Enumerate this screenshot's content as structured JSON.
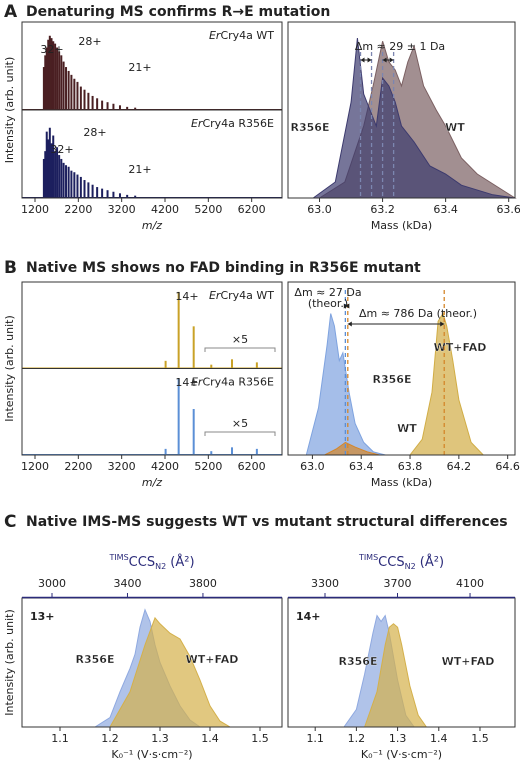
{
  "panels": [
    {
      "letter": "A",
      "title": "Denaturing MS confirms R→E mutation"
    },
    {
      "letter": "B",
      "title": "Native MS shows no FAD binding in R356E mutant"
    },
    {
      "letter": "C",
      "title": "Native IMS-MS suggests WT vs mutant structural differences"
    }
  ],
  "chart_data": [
    {
      "type": "spectrum",
      "xlabel": "m/z",
      "ylabel": "Intensity (arb. unit)",
      "xlim": [
        900,
        6900
      ],
      "xticks": [
        1200,
        2200,
        3200,
        4200,
        5200,
        6200
      ],
      "ylim": [
        0,
        1.05
      ],
      "series": [
        {
          "name": "ErCry4a WT",
          "color": "#4a1f22",
          "charge_labels": [
            "32+",
            "28+",
            "21+"
          ],
          "x": [
            1405,
            1437,
            1471,
            1506,
            1542,
            1581,
            1621,
            1664,
            1709,
            1757,
            1807,
            1860,
            1916,
            1976,
            2040,
            2108,
            2180,
            2258,
            2342,
            2432,
            2529,
            2634,
            2749,
            2874,
            3010,
            3161,
            3327,
            3512
          ],
          "values": [
            0.55,
            0.7,
            0.8,
            0.9,
            0.95,
            0.92,
            0.88,
            0.85,
            0.8,
            0.75,
            0.7,
            0.62,
            0.55,
            0.5,
            0.45,
            0.4,
            0.36,
            0.3,
            0.26,
            0.22,
            0.18,
            0.15,
            0.12,
            0.1,
            0.08,
            0.06,
            0.04,
            0.03
          ]
        },
        {
          "name": "ErCry4a R356E",
          "color": "#1c1f5e",
          "charge_labels": [
            "32+",
            "28+",
            "21+"
          ],
          "x": [
            1405,
            1437,
            1471,
            1506,
            1542,
            1581,
            1621,
            1664,
            1709,
            1757,
            1807,
            1860,
            1916,
            1976,
            2040,
            2108,
            2180,
            2258,
            2342,
            2432,
            2529,
            2634,
            2749,
            2874,
            3010,
            3161,
            3327,
            3512
          ],
          "values": [
            0.5,
            0.6,
            0.85,
            0.75,
            0.9,
            0.7,
            0.8,
            0.6,
            0.65,
            0.55,
            0.5,
            0.45,
            0.42,
            0.4,
            0.35,
            0.33,
            0.3,
            0.27,
            0.23,
            0.2,
            0.17,
            0.14,
            0.12,
            0.1,
            0.08,
            0.06,
            0.04,
            0.03
          ]
        }
      ]
    },
    {
      "type": "area",
      "xlabel": "Mass (kDa)",
      "xlim": [
        62.9,
        63.62
      ],
      "xticks": [
        {
          "value": 63,
          "label": "63.0"
        },
        63.2,
        63.4,
        63.6
      ],
      "ylim": [
        0,
        1.1
      ],
      "annotations": [
        "Δm ≈ 29 ± 1 Da"
      ],
      "vlines": [
        {
          "value": 63.13,
          "color": "#7c86b0"
        },
        {
          "value": 63.165,
          "color": "#7c86b0"
        },
        {
          "value": 63.2,
          "color": "#7c86b0"
        },
        {
          "value": 63.235,
          "color": "#7c86b0"
        }
      ],
      "series": [
        {
          "name": "WT",
          "color": "#7b6062",
          "x": [
            63.0,
            63.08,
            63.14,
            63.17,
            63.2,
            63.22,
            63.24,
            63.26,
            63.28,
            63.3,
            63.33,
            63.37,
            63.4,
            63.45,
            63.5,
            63.58,
            63.62
          ],
          "values": [
            0,
            0.1,
            0.45,
            0.7,
            0.98,
            0.85,
            0.8,
            0.7,
            0.85,
            0.95,
            0.7,
            0.55,
            0.45,
            0.25,
            0.15,
            0.05,
            0
          ]
        },
        {
          "name": "R356E",
          "color": "#3c3a6e",
          "x": [
            62.98,
            63.05,
            63.1,
            63.12,
            63.14,
            63.16,
            63.18,
            63.2,
            63.22,
            63.24,
            63.26,
            63.3,
            63.35,
            63.4,
            63.45,
            63.55,
            63.62
          ],
          "values": [
            0,
            0.1,
            0.6,
            1.0,
            0.65,
            0.55,
            0.45,
            0.75,
            0.7,
            0.6,
            0.45,
            0.35,
            0.2,
            0.15,
            0.08,
            0.02,
            0
          ]
        }
      ]
    },
    {
      "type": "spectrum",
      "xlabel": "m/z",
      "ylabel": "Intensity (arb. unit)",
      "xlim": [
        900,
        6900
      ],
      "xticks": [
        1200,
        2200,
        3200,
        4200,
        5200,
        6200
      ],
      "ylim": [
        0,
        1.05
      ],
      "series": [
        {
          "name": "ErCry4a WT",
          "color": "#c9a227",
          "charge_labels": [
            "14+"
          ],
          "scale_label": "×5",
          "x": [
            4214,
            4515,
            4862,
            5268,
            5746,
            6320
          ],
          "values": [
            0.1,
            1.0,
            0.55,
            0.05,
            0.12,
            0.08
          ]
        },
        {
          "name": "ErCry4a R356E",
          "color": "#5b8fd6",
          "charge_labels": [
            "14+"
          ],
          "scale_label": "×5",
          "x": [
            4214,
            4515,
            4862,
            5268,
            5746,
            6320
          ],
          "values": [
            0.08,
            1.0,
            0.6,
            0.05,
            0.1,
            0.08
          ]
        }
      ]
    },
    {
      "type": "area",
      "xlabel": "Mass (kDa)",
      "xlim": [
        62.8,
        64.66
      ],
      "xticks": [
        {
          "value": 63,
          "label": "63.0"
        },
        63.4,
        63.8,
        64.2,
        64.6
      ],
      "ylim": [
        0,
        1.1
      ],
      "annotations": [
        "Δm ≈ 27 Da",
        "(theor.)",
        "Δm ≈ 786 Da (theor.)"
      ],
      "vlines": [
        {
          "value": 63.27,
          "color": "#5b8fd6"
        },
        {
          "value": 63.29,
          "color": "#d4862a"
        },
        {
          "value": 64.08,
          "color": "#d4862a"
        }
      ],
      "series": [
        {
          "name": "R356E",
          "color": "#7fa3df",
          "x": [
            62.95,
            63.05,
            63.12,
            63.15,
            63.18,
            63.22,
            63.25,
            63.3,
            63.35,
            63.42,
            63.5,
            63.6
          ],
          "values": [
            0,
            0.3,
            0.7,
            0.9,
            0.82,
            0.6,
            0.65,
            0.4,
            0.2,
            0.08,
            0.02,
            0
          ]
        },
        {
          "name": "WT",
          "color": "#d4862a",
          "x": [
            63.1,
            63.2,
            63.27,
            63.35,
            63.45,
            63.55
          ],
          "values": [
            0,
            0.04,
            0.08,
            0.05,
            0.02,
            0
          ]
        },
        {
          "name": "WT+FAD",
          "color": "#d1ad45",
          "x": [
            63.8,
            63.9,
            63.98,
            64.03,
            64.07,
            64.1,
            64.15,
            64.2,
            64.3,
            64.4
          ],
          "values": [
            0,
            0.1,
            0.4,
            0.85,
            0.9,
            0.82,
            0.6,
            0.35,
            0.08,
            0
          ]
        }
      ]
    },
    {
      "type": "area",
      "charge": "13+",
      "xlabel": "K₀⁻¹ (V·s·cm⁻²)",
      "ylabel": "Intensity (arb. unit)",
      "xlim": [
        1.024,
        1.544
      ],
      "xticks": [
        1.1,
        1.2,
        1.3,
        1.4,
        1.5
      ],
      "ylim": [
        0,
        1.1
      ],
      "x2label": {
        "sup": "TIMS",
        "main": "CCS",
        "sub": "N2",
        "unit": " (Å²)"
      },
      "x2lim": [
        2841,
        4219
      ],
      "x2ticks": [
        3000,
        3400,
        3800
      ],
      "series": [
        {
          "name": "R356E",
          "color": "#8fa9e0",
          "x": [
            1.17,
            1.2,
            1.22,
            1.24,
            1.25,
            1.26,
            1.27,
            1.28,
            1.29,
            1.3,
            1.32,
            1.34,
            1.36,
            1.38
          ],
          "values": [
            0,
            0.08,
            0.3,
            0.5,
            0.62,
            0.85,
            1.0,
            0.9,
            0.7,
            0.55,
            0.35,
            0.18,
            0.06,
            0
          ]
        },
        {
          "name": "WT+FAD",
          "color": "#d4b04a",
          "x": [
            1.2,
            1.24,
            1.27,
            1.29,
            1.3,
            1.32,
            1.34,
            1.36,
            1.38,
            1.4,
            1.42,
            1.44
          ],
          "values": [
            0,
            0.3,
            0.7,
            0.93,
            0.88,
            0.8,
            0.75,
            0.6,
            0.4,
            0.18,
            0.05,
            0
          ]
        }
      ]
    },
    {
      "type": "area",
      "charge": "14+",
      "xlabel": "K₀⁻¹ (V·s·cm⁻²)",
      "xlim": [
        1.034,
        1.585
      ],
      "xticks": [
        1.1,
        1.2,
        1.3,
        1.4,
        1.5
      ],
      "ylim": [
        0,
        1.1
      ],
      "x2label": {
        "sup": "TIMS",
        "main": "CCS",
        "sub": "N2",
        "unit": " (Å²)"
      },
      "x2lim": [
        3096,
        4348
      ],
      "x2ticks": [
        3300,
        3700,
        4100
      ],
      "series": [
        {
          "name": "R356E",
          "color": "#8fa9e0",
          "x": [
            1.17,
            1.2,
            1.22,
            1.24,
            1.25,
            1.26,
            1.27,
            1.28,
            1.3,
            1.32,
            1.34
          ],
          "values": [
            0,
            0.15,
            0.45,
            0.8,
            0.95,
            0.9,
            0.95,
            0.8,
            0.4,
            0.1,
            0
          ]
        },
        {
          "name": "WT+FAD",
          "color": "#d4b04a",
          "x": [
            1.22,
            1.25,
            1.27,
            1.28,
            1.29,
            1.3,
            1.31,
            1.33,
            1.35,
            1.37
          ],
          "values": [
            0,
            0.3,
            0.7,
            0.85,
            0.88,
            0.85,
            0.7,
            0.35,
            0.1,
            0
          ]
        }
      ]
    }
  ]
}
